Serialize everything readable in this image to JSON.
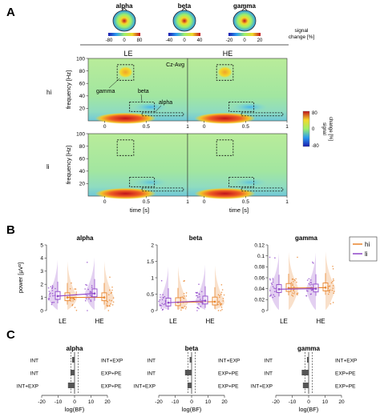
{
  "panels": {
    "A": "A",
    "B": "B",
    "C": "C"
  },
  "colors": {
    "hi": "#e8832a",
    "li": "#8e44c9",
    "bar": "#555555"
  },
  "topomaps": {
    "items": [
      {
        "title": "alpha",
        "ticks": [
          "-80",
          "0",
          "80"
        ]
      },
      {
        "title": "beta",
        "ticks": [
          "-40",
          "0",
          "40"
        ]
      },
      {
        "title": "gamma",
        "ticks": [
          "-20",
          "0",
          "20"
        ]
      }
    ],
    "unit_line1": "signal",
    "unit_line2": "change [%]"
  },
  "tfr": {
    "col_labels": [
      "LE",
      "HE"
    ],
    "row_labels": [
      "hi",
      "li"
    ],
    "ylabel": "frequency [Hz]",
    "xlabel": "time [s]",
    "yticks": [
      "100",
      "80",
      "60",
      "40",
      "20"
    ],
    "xticks": [
      "0",
      "0.5",
      "1"
    ],
    "channel": "Cz-Avg",
    "band_labels": {
      "gamma": "gamma",
      "beta": "beta",
      "alpha": "alpha"
    },
    "colorbar": {
      "ticks": [
        "80",
        "0",
        "-80"
      ],
      "label_line1": "signal",
      "label_line2": "change [%]"
    }
  },
  "chart_data": [
    {
      "type": "box",
      "title": "alpha",
      "categories": [
        "LE",
        "HE"
      ],
      "ylabel": "power [μV²]",
      "ylim": [
        0,
        5
      ],
      "yticks": [
        "5",
        "4",
        "3",
        "2",
        "1",
        "0"
      ],
      "legend": "top-right",
      "series": [
        {
          "name": "hi",
          "medians": [
            1.0,
            1.0
          ]
        },
        {
          "name": "li",
          "medians": [
            1.1,
            1.3
          ]
        }
      ]
    },
    {
      "type": "box",
      "title": "beta",
      "categories": [
        "LE",
        "HE"
      ],
      "ylim": [
        0,
        2
      ],
      "yticks": [
        "2",
        "1.5",
        "1",
        "0.5",
        "0"
      ],
      "series": [
        {
          "name": "hi",
          "medians": [
            0.25,
            0.27
          ]
        },
        {
          "name": "li",
          "medians": [
            0.24,
            0.3
          ]
        }
      ]
    },
    {
      "type": "box",
      "title": "gamma",
      "categories": [
        "LE",
        "HE"
      ],
      "ylim": [
        0,
        0.12
      ],
      "yticks": [
        "0.12",
        "0.1",
        "0.08",
        "0.06",
        "0.04",
        "0.02",
        "0"
      ],
      "series": [
        {
          "name": "hi",
          "medians": [
            0.041,
            0.042
          ]
        },
        {
          "name": "li",
          "medians": [
            0.039,
            0.04
          ]
        }
      ]
    },
    {
      "type": "bar",
      "title": "alpha",
      "categories": [
        "INT",
        "INT",
        "INT+EXP"
      ],
      "right_labels": [
        "INT+EXP",
        "EXP+PE",
        "EXP+PE"
      ],
      "values": [
        -1.5,
        -2.5,
        -4
      ],
      "xlabel": "log(BF)",
      "xlim": [
        -20,
        20
      ],
      "xticks": [
        "-20",
        "-10",
        "0",
        "10",
        "20"
      ]
    },
    {
      "type": "bar",
      "title": "beta",
      "categories": [
        "INT",
        "INT",
        "INT+EXP"
      ],
      "right_labels": [
        "INT+EXP",
        "EXP+PE",
        "EXP+PE"
      ],
      "values": [
        -1.2,
        -4,
        -2.5
      ],
      "xlabel": "log(BF)",
      "xlim": [
        -20,
        20
      ],
      "xticks": [
        "-20",
        "-10",
        "0",
        "10",
        "20"
      ]
    },
    {
      "type": "bar",
      "title": "gamma",
      "categories": [
        "INT",
        "INT",
        "INT+EXP"
      ],
      "right_labels": [
        "INT+EXP",
        "EXP+PE",
        "EXP+PE"
      ],
      "values": [
        -1,
        -4.2,
        -3.5
      ],
      "xlabel": "log(BF)",
      "xlim": [
        -20,
        20
      ],
      "xticks": [
        "-20",
        "-10",
        "0",
        "10",
        "20"
      ]
    }
  ]
}
